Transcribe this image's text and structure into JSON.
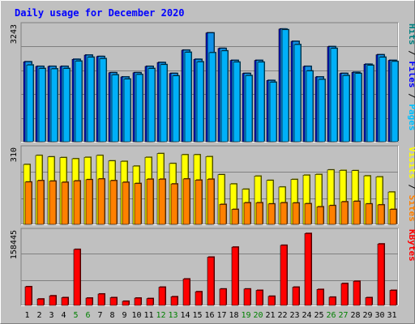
{
  "chart_data": {
    "title": "Daily usage for December 2020",
    "days": [
      "1",
      "2",
      "3",
      "4",
      "5",
      "6",
      "7",
      "8",
      "9",
      "10",
      "11",
      "12",
      "13",
      "14",
      "15",
      "16",
      "17",
      "18",
      "19",
      "20",
      "21",
      "22",
      "23",
      "24",
      "25",
      "26",
      "27",
      "28",
      "29",
      "30",
      "31"
    ],
    "weekend_days": [
      "5",
      "6",
      "12",
      "13",
      "19",
      "20",
      "26",
      "27"
    ],
    "panels": [
      {
        "type": "bar",
        "max_label": "3243",
        "ylim": [
          0,
          3243
        ],
        "right_label_parts": [
          "Pages",
          "Files",
          "Hits"
        ],
        "right_label_colors": [
          "#00c0ff",
          "#0000ff",
          "#008080"
        ],
        "series": [
          {
            "name": "Hits",
            "color": "#0018d8",
            "values": [
              2270,
              2140,
              2140,
              2140,
              2340,
              2460,
              2420,
              1960,
              1840,
              1960,
              2140,
              2250,
              1940,
              2600,
              2340,
              3090,
              2650,
              2310,
              1940,
              2310,
              1740,
              3200,
              2850,
              2140,
              1840,
              2700,
              1940,
              1970,
              2200,
              2470,
              2310
            ]
          },
          {
            "name": "Files",
            "color": "#1090e8",
            "values": [
              2270,
              2140,
              2140,
              2140,
              2340,
              2460,
              2420,
              1960,
              1840,
              1960,
              2140,
              2250,
              1940,
              2600,
              2340,
              3090,
              2650,
              2310,
              1940,
              2310,
              1740,
              3200,
              2850,
              2140,
              1840,
              2700,
              1940,
              1970,
              2200,
              2470,
              2310
            ]
          },
          {
            "name": "Pages",
            "color": "#00b0f8",
            "values": [
              2180,
              2080,
              2070,
              2080,
              2290,
              2400,
              2360,
              1900,
              1780,
              1910,
              2080,
              2190,
              1870,
              2540,
              2270,
              2530,
              2580,
              2260,
              1880,
              2260,
              1690,
              3180,
              2760,
              2010,
              1770,
              2650,
              1880,
              1940,
              2170,
              2400,
              2280
            ]
          }
        ]
      },
      {
        "type": "bar",
        "max_label": "310",
        "ylim": [
          0,
          310
        ],
        "right_label_parts": [
          "Sites",
          "Visits"
        ],
        "right_label_colors": [
          "#ff8000",
          "#ffff00"
        ],
        "series": [
          {
            "name": "Visits",
            "color": "#ffff00",
            "values": [
              252,
              290,
              284,
              281,
              276,
              282,
              290,
              267,
              265,
              245,
              282,
              298,
              256,
              293,
              293,
              285,
              209,
              170,
              148,
              203,
              185,
              157,
              189,
              207,
              210,
              229,
              227,
              226,
              204,
              200,
              136
            ]
          },
          {
            "name": "Sites",
            "color": "#ff8000",
            "values": [
              178,
              184,
              182,
              177,
              183,
              188,
              191,
              184,
              177,
              172,
              190,
              190,
              170,
              191,
              186,
              190,
              84,
              63,
              91,
              91,
              86,
              91,
              90,
              87,
              74,
              79,
              95,
              97,
              86,
              82,
              63
            ]
          }
        ]
      },
      {
        "type": "bar",
        "max_label": "158445",
        "ylim": [
          0,
          158445
        ],
        "right_label_parts": [
          "KBytes"
        ],
        "right_label_colors": [
          "#ff0000"
        ],
        "series": [
          {
            "name": "KBytes",
            "color": "#ff0000",
            "values": [
              41000,
              14000,
              21000,
              17000,
              123000,
              16000,
              25000,
              17000,
              9000,
              16000,
              15000,
              40000,
              19000,
              58000,
              30000,
              106000,
              36000,
              128000,
              36000,
              33000,
              20000,
              132000,
              40000,
              158000,
              35000,
              18000,
              48000,
              53000,
              17000,
              135000,
              33000
            ]
          }
        ]
      }
    ]
  }
}
